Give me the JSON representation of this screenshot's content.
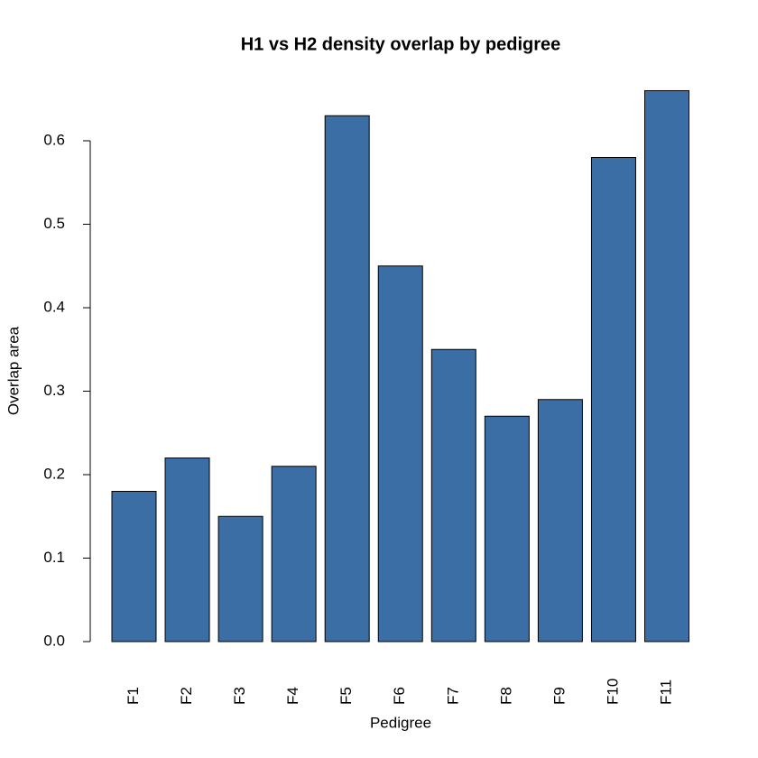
{
  "chart_data": {
    "type": "bar",
    "title": "H1 vs H2 density overlap by pedigree",
    "x_label": "Pedigree",
    "y_label": "Overlap area",
    "categories": [
      "F1",
      "F2",
      "F3",
      "F4",
      "F5",
      "F6",
      "F7",
      "F8",
      "F9",
      "F10",
      "F11"
    ],
    "values": [
      0.18,
      0.22,
      0.15,
      0.21,
      0.63,
      0.45,
      0.35,
      0.27,
      0.29,
      0.58,
      0.66
    ],
    "color": "#3a6ea5",
    "ylim": [
      0,
      0.66
    ],
    "yticks": [
      {
        "value": 0,
        "label": "0.0"
      },
      0.1,
      0.2,
      0.3,
      0.4,
      0.5,
      0.6
    ],
    "grid": false
  }
}
